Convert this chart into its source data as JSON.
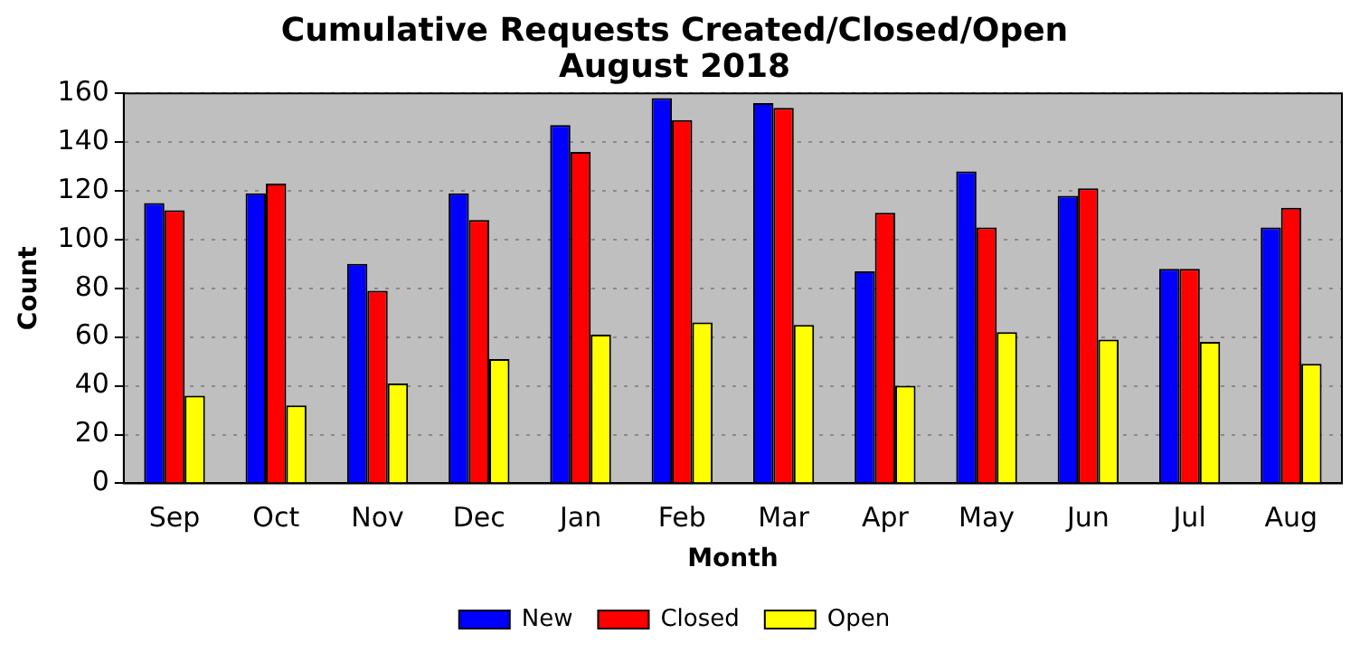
{
  "chart_data": {
    "type": "bar",
    "title": "Cumulative Requests Created/Closed/Open\nAugust 2018",
    "xlabel": "Month",
    "ylabel": "Count",
    "categories": [
      "Sep",
      "Oct",
      "Nov",
      "Dec",
      "Jan",
      "Feb",
      "Mar",
      "Apr",
      "May",
      "Jun",
      "Jul",
      "Aug"
    ],
    "series": [
      {
        "name": "New",
        "color": "#0000ff",
        "values": [
          115,
          119,
          90,
          119,
          147,
          158,
          156,
          87,
          128,
          118,
          88,
          105
        ]
      },
      {
        "name": "Closed",
        "color": "#ff0000",
        "values": [
          112,
          123,
          79,
          108,
          136,
          149,
          154,
          111,
          105,
          121,
          88,
          113
        ]
      },
      {
        "name": "Open",
        "color": "#ffff00",
        "values": [
          36,
          32,
          41,
          51,
          61,
          66,
          65,
          40,
          62,
          59,
          58,
          49
        ]
      }
    ],
    "ylim": [
      0,
      160
    ],
    "yticks": [
      0,
      20,
      40,
      60,
      80,
      100,
      120,
      140,
      160
    ],
    "grid": "y",
    "legend": "bottom"
  }
}
